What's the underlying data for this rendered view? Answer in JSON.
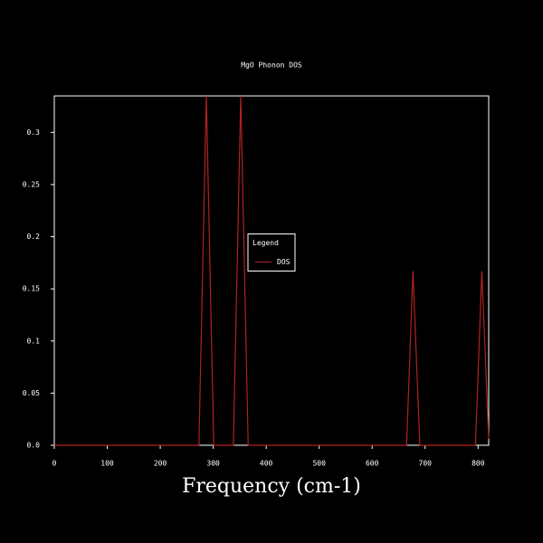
{
  "chart_data": {
    "type": "line",
    "title": "MgO Phonon DOS",
    "xlabel": "Frequency (cm-1)",
    "x": [
      0,
      273,
      287,
      301,
      338,
      352,
      366,
      665,
      677,
      690,
      795,
      807,
      820
    ],
    "series": [
      {
        "name": "DOS",
        "color": "#b22222",
        "values": [
          0,
          0,
          0.335,
          0,
          0,
          0.335,
          0,
          0,
          0.167,
          0,
          0,
          0.167,
          0.006
        ]
      }
    ],
    "xlim": [
      0,
      820
    ],
    "xticks": [
      0,
      100,
      200,
      300,
      400,
      500,
      600,
      700,
      800
    ],
    "ylim": [
      0,
      0.335
    ],
    "yticks": [
      {
        "value": 0,
        "label": "0.0"
      },
      0.05,
      0.1,
      0.15,
      0.2,
      0.25,
      0.3
    ],
    "legend_title": "Legend",
    "legend_loc": "center",
    "grid": false
  }
}
